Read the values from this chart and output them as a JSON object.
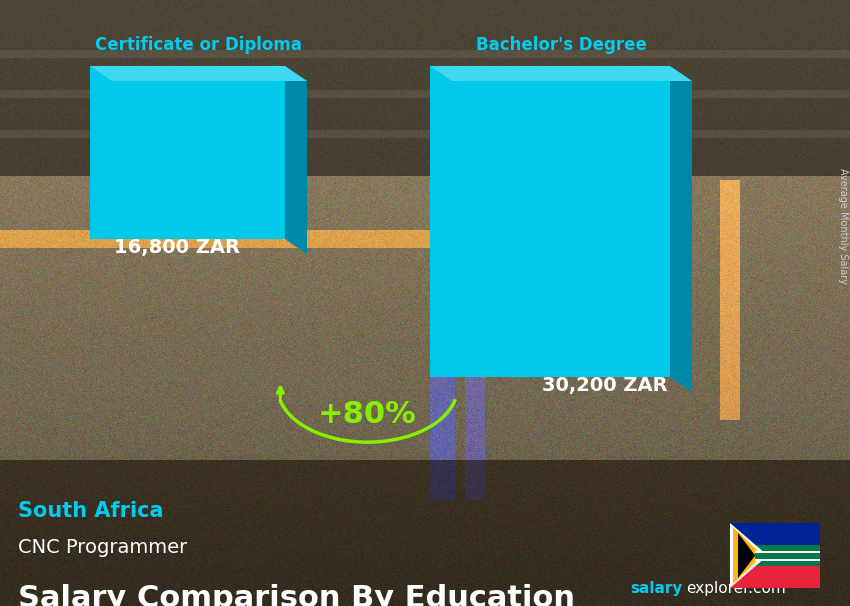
{
  "title": "Salary Comparison By Education",
  "subtitle_job": "CNC Programmer",
  "subtitle_country": "South Africa",
  "categories": [
    "Certificate or Diploma",
    "Bachelor's Degree"
  ],
  "values": [
    16800,
    30200
  ],
  "value_labels": [
    "16,800 ZAR",
    "30,200 ZAR"
  ],
  "pct_change": "+80%",
  "bar_face_color": "#00C8E8",
  "bar_side_color": "#0088AA",
  "bar_top_color": "#40D8F0",
  "title_color": "#FFFFFF",
  "subtitle_job_color": "#FFFFFF",
  "subtitle_country_color": "#00CCEE",
  "label_color": "#FFFFFF",
  "category_color": "#00CCEE",
  "pct_color": "#88EE00",
  "brand_salary_color": "#00CCEE",
  "brand_explorer_color": "#FFFFFF",
  "side_label": "Average Monthly Salary",
  "side_label_color": "#CCCCCC",
  "flag_red": "#E8243C",
  "flag_green": "#007A4D",
  "flag_blue": "#002395",
  "flag_white": "#FFFFFF",
  "flag_gold": "#FFB612",
  "flag_black": "#000000"
}
